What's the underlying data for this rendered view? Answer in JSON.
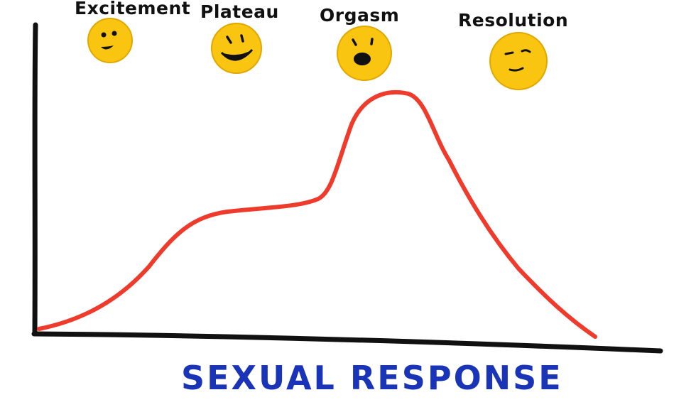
{
  "phases": [
    {
      "label": "Excitement",
      "icon": "smiling-face-icon"
    },
    {
      "label": "Plateau",
      "icon": "grinning-face-icon"
    },
    {
      "label": "Orgasm",
      "icon": "open-mouth-face-icon"
    },
    {
      "label": "Resolution",
      "icon": "content-sleepy-face-icon"
    }
  ],
  "x_axis_title": "SEXUAL RESPONSE",
  "colors": {
    "curve": "#ef3b2c",
    "axis": "#111111",
    "title": "#1a34b8",
    "face_fill": "#f9c511",
    "face_stroke": "#e0a800",
    "face_features": "#111111"
  }
}
